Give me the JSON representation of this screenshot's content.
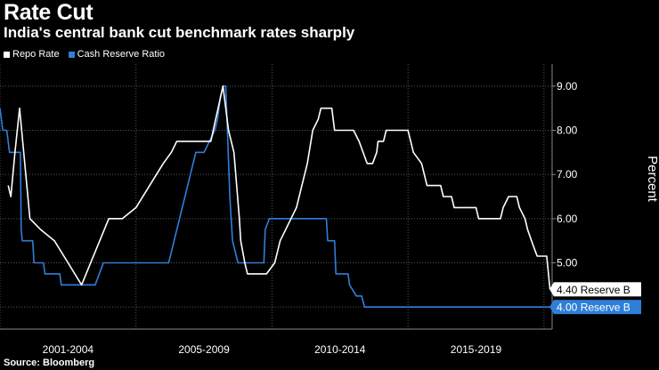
{
  "chart_data": {
    "type": "line",
    "title": "Rate Cut",
    "subtitle": "India's central bank cut benchmark rates sharply",
    "ylabel": "Percent",
    "xlabel": "",
    "ylim": [
      3.5,
      9.5
    ],
    "yticks": [
      4.0,
      5.0,
      6.0,
      7.0,
      8.0,
      9.0
    ],
    "ytick_labels": [
      "4.00",
      "5.00",
      "6.00",
      "7.00",
      "8.00",
      "9.00"
    ],
    "xlim": [
      2000.0,
      2020.3
    ],
    "x_group_labels": [
      {
        "label": "2001-2004",
        "center": 2002.5
      },
      {
        "label": "2005-2009",
        "center": 2007.5
      },
      {
        "label": "2010-2014",
        "center": 2012.5
      },
      {
        "label": "2015-2019",
        "center": 2017.5
      }
    ],
    "x_separators": [
      2000.0,
      2005.0,
      2010.0,
      2015.0,
      2020.0
    ],
    "grid": true,
    "legend_position": "top-left",
    "source": "Source: Bloomberg",
    "colors": {
      "repo": "#ffffff",
      "crr": "#2f7fd8",
      "background": "#000000",
      "grid": "#555555"
    },
    "series": [
      {
        "name": "Repo Rate",
        "key": "repo",
        "end_label": "4.40 Reserve B",
        "points": [
          [
            2000.3,
            6.75
          ],
          [
            2000.4,
            6.5
          ],
          [
            2000.55,
            7.5
          ],
          [
            2000.72,
            8.5
          ],
          [
            2001.1,
            6.0
          ],
          [
            2001.5,
            5.75
          ],
          [
            2002.0,
            5.5
          ],
          [
            2002.5,
            5.0
          ],
          [
            2003.0,
            4.5
          ],
          [
            2004.0,
            6.0
          ],
          [
            2004.5,
            6.0
          ],
          [
            2005.0,
            6.25
          ],
          [
            2006.0,
            7.25
          ],
          [
            2006.3,
            7.5
          ],
          [
            2006.5,
            7.75
          ],
          [
            2007.5,
            7.75
          ],
          [
            2007.75,
            7.75
          ],
          [
            2008.2,
            9.0
          ],
          [
            2008.3,
            8.5
          ],
          [
            2008.4,
            8.0
          ],
          [
            2008.6,
            7.5
          ],
          [
            2008.8,
            6.0
          ],
          [
            2008.85,
            5.5
          ],
          [
            2009.0,
            5.0
          ],
          [
            2009.1,
            4.75
          ],
          [
            2009.8,
            4.75
          ],
          [
            2010.1,
            5.0
          ],
          [
            2010.3,
            5.5
          ],
          [
            2010.5,
            5.75
          ],
          [
            2010.7,
            6.0
          ],
          [
            2010.9,
            6.25
          ],
          [
            2011.1,
            6.75
          ],
          [
            2011.3,
            7.25
          ],
          [
            2011.5,
            8.0
          ],
          [
            2011.7,
            8.25
          ],
          [
            2011.8,
            8.5
          ],
          [
            2012.2,
            8.5
          ],
          [
            2012.3,
            8.0
          ],
          [
            2013.0,
            8.0
          ],
          [
            2013.2,
            7.75
          ],
          [
            2013.5,
            7.25
          ],
          [
            2013.7,
            7.25
          ],
          [
            2013.85,
            7.5
          ],
          [
            2013.9,
            7.75
          ],
          [
            2014.1,
            7.75
          ],
          [
            2014.2,
            8.0
          ],
          [
            2015.0,
            8.0
          ],
          [
            2015.1,
            7.75
          ],
          [
            2015.2,
            7.5
          ],
          [
            2015.5,
            7.25
          ],
          [
            2015.7,
            6.75
          ],
          [
            2016.2,
            6.75
          ],
          [
            2016.3,
            6.5
          ],
          [
            2016.6,
            6.5
          ],
          [
            2016.7,
            6.25
          ],
          [
            2017.5,
            6.25
          ],
          [
            2017.6,
            6.0
          ],
          [
            2018.4,
            6.0
          ],
          [
            2018.5,
            6.25
          ],
          [
            2018.7,
            6.5
          ],
          [
            2019.0,
            6.5
          ],
          [
            2019.1,
            6.25
          ],
          [
            2019.3,
            6.0
          ],
          [
            2019.4,
            5.75
          ],
          [
            2019.6,
            5.4
          ],
          [
            2019.75,
            5.15
          ],
          [
            2020.1,
            5.15
          ],
          [
            2020.22,
            4.4
          ]
        ]
      },
      {
        "name": "Cash Reserve Ratio",
        "key": "crr",
        "end_label": "4.00 Reserve B",
        "points": [
          [
            2000.0,
            8.5
          ],
          [
            2000.1,
            8.0
          ],
          [
            2000.25,
            8.0
          ],
          [
            2000.35,
            7.5
          ],
          [
            2000.75,
            7.5
          ],
          [
            2000.78,
            5.75
          ],
          [
            2000.82,
            5.5
          ],
          [
            2001.2,
            5.5
          ],
          [
            2001.25,
            5.0
          ],
          [
            2001.6,
            5.0
          ],
          [
            2001.65,
            4.75
          ],
          [
            2002.2,
            4.75
          ],
          [
            2002.25,
            4.5
          ],
          [
            2003.5,
            4.5
          ],
          [
            2003.8,
            5.0
          ],
          [
            2006.2,
            5.0
          ],
          [
            2006.4,
            5.5
          ],
          [
            2006.6,
            6.0
          ],
          [
            2006.8,
            6.5
          ],
          [
            2007.0,
            7.0
          ],
          [
            2007.2,
            7.5
          ],
          [
            2007.5,
            7.5
          ],
          [
            2007.7,
            7.75
          ],
          [
            2007.9,
            8.0
          ],
          [
            2008.0,
            8.25
          ],
          [
            2008.1,
            8.75
          ],
          [
            2008.2,
            9.0
          ],
          [
            2008.3,
            9.0
          ],
          [
            2008.45,
            6.5
          ],
          [
            2008.55,
            5.5
          ],
          [
            2008.75,
            5.0
          ],
          [
            2009.7,
            5.0
          ],
          [
            2009.75,
            5.75
          ],
          [
            2009.9,
            6.0
          ],
          [
            2012.0,
            6.0
          ],
          [
            2012.05,
            5.5
          ],
          [
            2012.3,
            5.5
          ],
          [
            2012.35,
            4.75
          ],
          [
            2012.8,
            4.75
          ],
          [
            2012.85,
            4.5
          ],
          [
            2013.1,
            4.25
          ],
          [
            2013.3,
            4.25
          ],
          [
            2013.4,
            4.0
          ],
          [
            2020.22,
            4.0
          ]
        ]
      }
    ]
  }
}
